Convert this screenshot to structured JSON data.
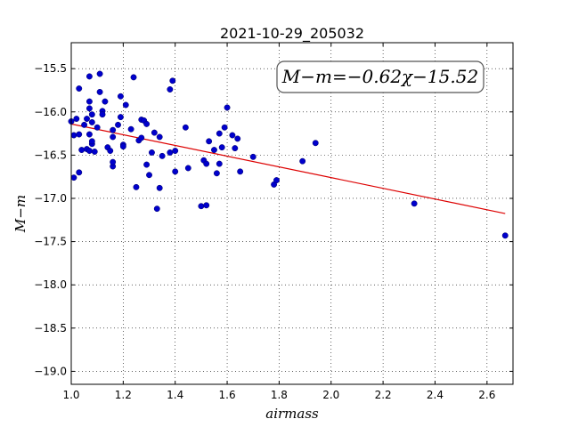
{
  "chart_data": {
    "type": "scatter",
    "title": "2021-10-29_205032",
    "xlabel": "airmass",
    "ylabel": "M−m",
    "xlim": [
      1.0,
      2.7
    ],
    "ylim": [
      -19.15,
      -15.2
    ],
    "y_inverted": true,
    "xticks": [
      1.0,
      1.2,
      1.4,
      1.6,
      1.8,
      2.0,
      2.2,
      2.4,
      2.6
    ],
    "xtick_labels": [
      "1.0",
      "1.2",
      "1.4",
      "1.6",
      "1.8",
      "2.0",
      "2.2",
      "2.4",
      "2.6"
    ],
    "yticks": [
      -15.5,
      -16.0,
      -16.5,
      -17.0,
      -17.5,
      -18.0,
      -18.5,
      -19.0
    ],
    "ytick_labels": [
      "−15.5",
      "−16.0",
      "−16.5",
      "−17.0",
      "−17.5",
      "−18.0",
      "−18.5",
      "−19.0"
    ],
    "grid": true,
    "annotation": "M−m=−0.62χ−15.52",
    "point_color": "#0000cc",
    "fit_color": "#dd0000",
    "fit": {
      "slope": -0.62,
      "intercept": -15.52,
      "x_range": [
        1.0,
        2.67
      ]
    },
    "points": [
      [
        1.0,
        -16.11
      ],
      [
        1.01,
        -16.27
      ],
      [
        1.01,
        -16.76
      ],
      [
        1.02,
        -16.08
      ],
      [
        1.03,
        -16.7
      ],
      [
        1.03,
        -16.26
      ],
      [
        1.03,
        -15.73
      ],
      [
        1.04,
        -16.44
      ],
      [
        1.05,
        -16.15
      ],
      [
        1.06,
        -16.08
      ],
      [
        1.06,
        -16.43
      ],
      [
        1.07,
        -15.96
      ],
      [
        1.07,
        -15.88
      ],
      [
        1.07,
        -16.26
      ],
      [
        1.07,
        -16.45
      ],
      [
        1.08,
        -16.37
      ],
      [
        1.08,
        -16.34
      ],
      [
        1.08,
        -16.12
      ],
      [
        1.08,
        -16.03
      ],
      [
        1.07,
        -15.59
      ],
      [
        1.09,
        -16.46
      ],
      [
        1.1,
        -16.18
      ],
      [
        1.11,
        -15.56
      ],
      [
        1.11,
        -15.77
      ],
      [
        1.12,
        -15.99
      ],
      [
        1.12,
        -16.03
      ],
      [
        1.13,
        -15.88
      ],
      [
        1.14,
        -16.41
      ],
      [
        1.15,
        -16.45
      ],
      [
        1.16,
        -16.29
      ],
      [
        1.16,
        -16.21
      ],
      [
        1.16,
        -16.63
      ],
      [
        1.16,
        -16.58
      ],
      [
        1.18,
        -16.15
      ],
      [
        1.19,
        -16.06
      ],
      [
        1.19,
        -15.82
      ],
      [
        1.2,
        -16.38
      ],
      [
        1.2,
        -16.4
      ],
      [
        1.21,
        -15.92
      ],
      [
        1.23,
        -16.2
      ],
      [
        1.24,
        -15.6
      ],
      [
        1.25,
        -16.87
      ],
      [
        1.26,
        -16.33
      ],
      [
        1.27,
        -16.09
      ],
      [
        1.27,
        -16.3
      ],
      [
        1.28,
        -16.1
      ],
      [
        1.29,
        -16.14
      ],
      [
        1.29,
        -16.61
      ],
      [
        1.3,
        -16.73
      ],
      [
        1.31,
        -16.47
      ],
      [
        1.32,
        -16.24
      ],
      [
        1.33,
        -17.12
      ],
      [
        1.34,
        -16.29
      ],
      [
        1.34,
        -16.88
      ],
      [
        1.35,
        -16.51
      ],
      [
        1.38,
        -16.47
      ],
      [
        1.38,
        -15.74
      ],
      [
        1.39,
        -15.64
      ],
      [
        1.4,
        -16.45
      ],
      [
        1.4,
        -16.69
      ],
      [
        1.44,
        -16.18
      ],
      [
        1.45,
        -16.65
      ],
      [
        1.5,
        -17.09
      ],
      [
        1.51,
        -16.56
      ],
      [
        1.52,
        -16.6
      ],
      [
        1.52,
        -17.08
      ],
      [
        1.53,
        -16.34
      ],
      [
        1.55,
        -16.44
      ],
      [
        1.56,
        -16.71
      ],
      [
        1.57,
        -16.25
      ],
      [
        1.57,
        -16.6
      ],
      [
        1.58,
        -16.41
      ],
      [
        1.59,
        -16.18
      ],
      [
        1.6,
        -15.95
      ],
      [
        1.62,
        -16.27
      ],
      [
        1.63,
        -16.42
      ],
      [
        1.64,
        -16.31
      ],
      [
        1.65,
        -16.69
      ],
      [
        1.7,
        -16.52
      ],
      [
        1.78,
        -16.84
      ],
      [
        1.79,
        -16.79
      ],
      [
        1.89,
        -16.57
      ],
      [
        1.94,
        -16.36
      ],
      [
        2.32,
        -17.06
      ],
      [
        2.67,
        -17.43
      ]
    ]
  }
}
